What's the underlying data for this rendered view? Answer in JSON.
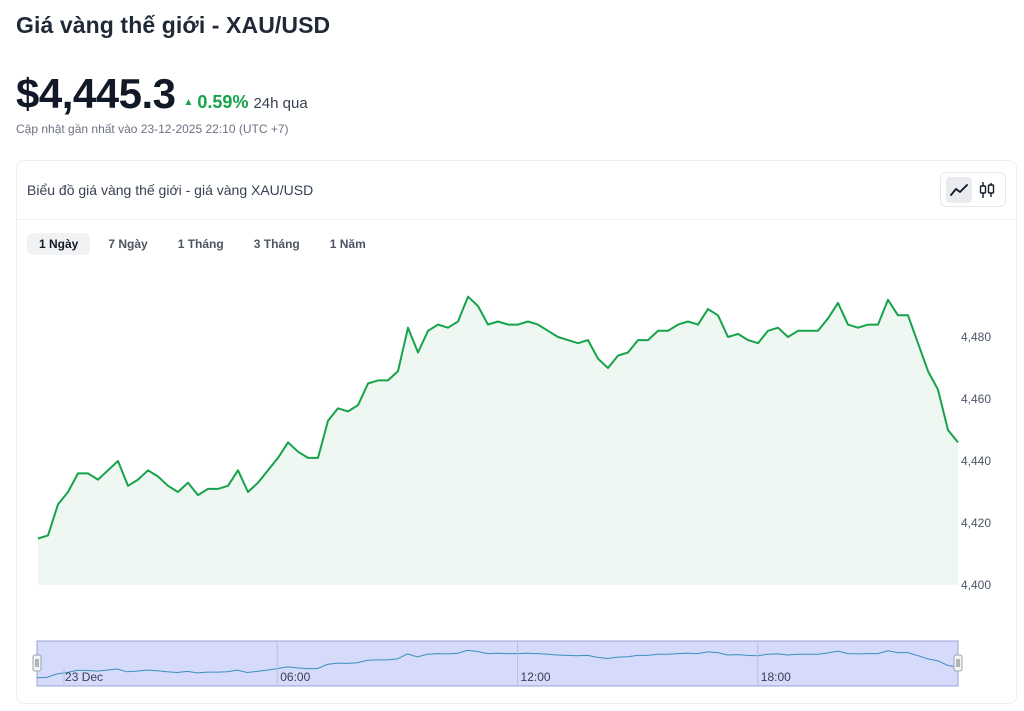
{
  "page": {
    "title": "Giá vàng thế giới - XAU/USD"
  },
  "price": {
    "value": "$4,445.3",
    "change_pct": "0.59%",
    "change_period": "24h qua",
    "updated": "Cập nhật gần nhất vào 23-12-2025 22:10 (UTC +7)"
  },
  "chart_card": {
    "title": "Biểu đồ giá vàng thế giới - giá vàng XAU/USD",
    "chart_types": [
      "line-chart-icon",
      "candlestick-icon"
    ],
    "active_chart_type": "line-chart-icon"
  },
  "range_tabs": [
    {
      "label": "1 Ngày",
      "active": true
    },
    {
      "label": "7 Ngày",
      "active": false
    },
    {
      "label": "1 Tháng",
      "active": false
    },
    {
      "label": "3 Tháng",
      "active": false
    },
    {
      "label": "1 Năm",
      "active": false
    }
  ],
  "colors": {
    "line": "#16a34a",
    "area": "#eef7f1",
    "navigator_bg": "#d6dafb",
    "navigator_line": "#3d8fbf",
    "up": "#16a34a"
  },
  "chart_data": {
    "type": "area",
    "x_start": "23 Dec 00:00",
    "x_interval_minutes": 15,
    "ylim": [
      4400,
      4500
    ],
    "yticks": [
      "4,400",
      "4,420",
      "4,440",
      "4,460",
      "4,480"
    ],
    "ytick_values": [
      4400,
      4420,
      4440,
      4460,
      4480
    ],
    "navigator_labels": [
      "23 Dec",
      "06:00",
      "12:00",
      "18:00"
    ],
    "values": [
      4415,
      4416,
      4426,
      4430,
      4436,
      4436,
      4434,
      4437,
      4440,
      4432,
      4434,
      4437,
      4435,
      4432,
      4430,
      4433,
      4429,
      4431,
      4431,
      4432,
      4437,
      4430,
      4433,
      4437,
      4441,
      4446,
      4443,
      4441,
      4441,
      4453,
      4457,
      4456,
      4458,
      4465,
      4466,
      4466,
      4469,
      4483,
      4475,
      4482,
      4484,
      4483,
      4485,
      4493,
      4490,
      4484,
      4485,
      4484,
      4484,
      4485,
      4484,
      4482,
      4480,
      4479,
      4478,
      4479,
      4473,
      4470,
      4474,
      4475,
      4479,
      4479,
      4482,
      4482,
      4484,
      4485,
      4484,
      4489,
      4487,
      4480,
      4481,
      4479,
      4478,
      4482,
      4483,
      4480,
      4482,
      4482,
      4482,
      4486,
      4491,
      4484,
      4483,
      4484,
      4484,
      4492,
      4487,
      4487,
      4478,
      4469,
      4463,
      4450,
      4446
    ],
    "grid": false
  }
}
